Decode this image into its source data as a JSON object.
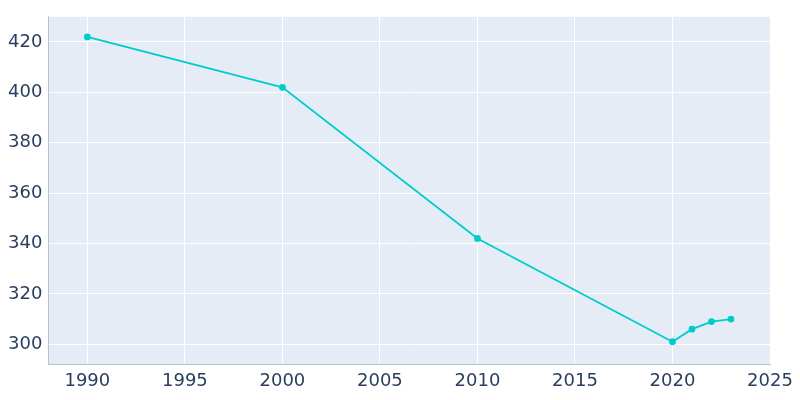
{
  "chart_data": {
    "type": "line",
    "x": [
      1990,
      2000,
      2010,
      2020,
      2021,
      2022,
      2023
    ],
    "values": [
      422,
      402,
      342,
      301,
      306,
      309,
      310
    ],
    "color": "#00cccc",
    "xlim": [
      1988,
      2025
    ],
    "xticks": [
      1990,
      1995,
      2000,
      2005,
      2010,
      2015,
      2020,
      2025
    ],
    "ylim": [
      292,
      430
    ],
    "yticks": [
      300,
      320,
      340,
      360,
      380,
      400,
      420
    ],
    "grid": true,
    "marker": "circle"
  }
}
